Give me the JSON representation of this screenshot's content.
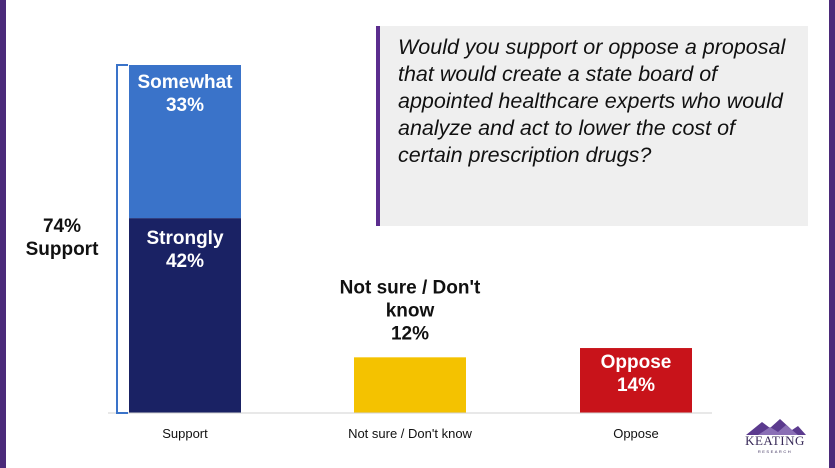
{
  "question": "Would you support or oppose a proposal that would create a state board of appointed healthcare experts who would analyze and act to lower the cost of certain prescription drugs?",
  "logo": {
    "word": "KEATING",
    "sub": "RESEARCH"
  },
  "colors": {
    "frame": "#4b2a7a",
    "question_border": "#5b2d8e",
    "question_bg": "#efefef",
    "somewhat": "#3a73c9",
    "strongly": "#1a2264",
    "not_sure": "#f4c200",
    "oppose": "#c8131a",
    "brace": "#3a73c9"
  },
  "chart_data": {
    "type": "bar",
    "stacked": true,
    "categories": [
      "Support",
      "Not sure / Don't know",
      "Oppose"
    ],
    "series": [
      {
        "name": "Strongly",
        "values": [
          42,
          null,
          null
        ]
      },
      {
        "name": "Somewhat",
        "values": [
          33,
          null,
          null
        ]
      },
      {
        "name": "",
        "values": [
          null,
          12,
          14
        ]
      }
    ],
    "segment_labels": {
      "strongly": [
        "Strongly",
        "42%"
      ],
      "somewhat": [
        "Somewhat",
        "33%"
      ],
      "not_sure": [
        "Not sure / Don't",
        "know",
        "12%"
      ],
      "oppose": [
        "Oppose",
        "14%"
      ]
    },
    "support_total_label": [
      "74%",
      "Support"
    ],
    "grid": false
  }
}
